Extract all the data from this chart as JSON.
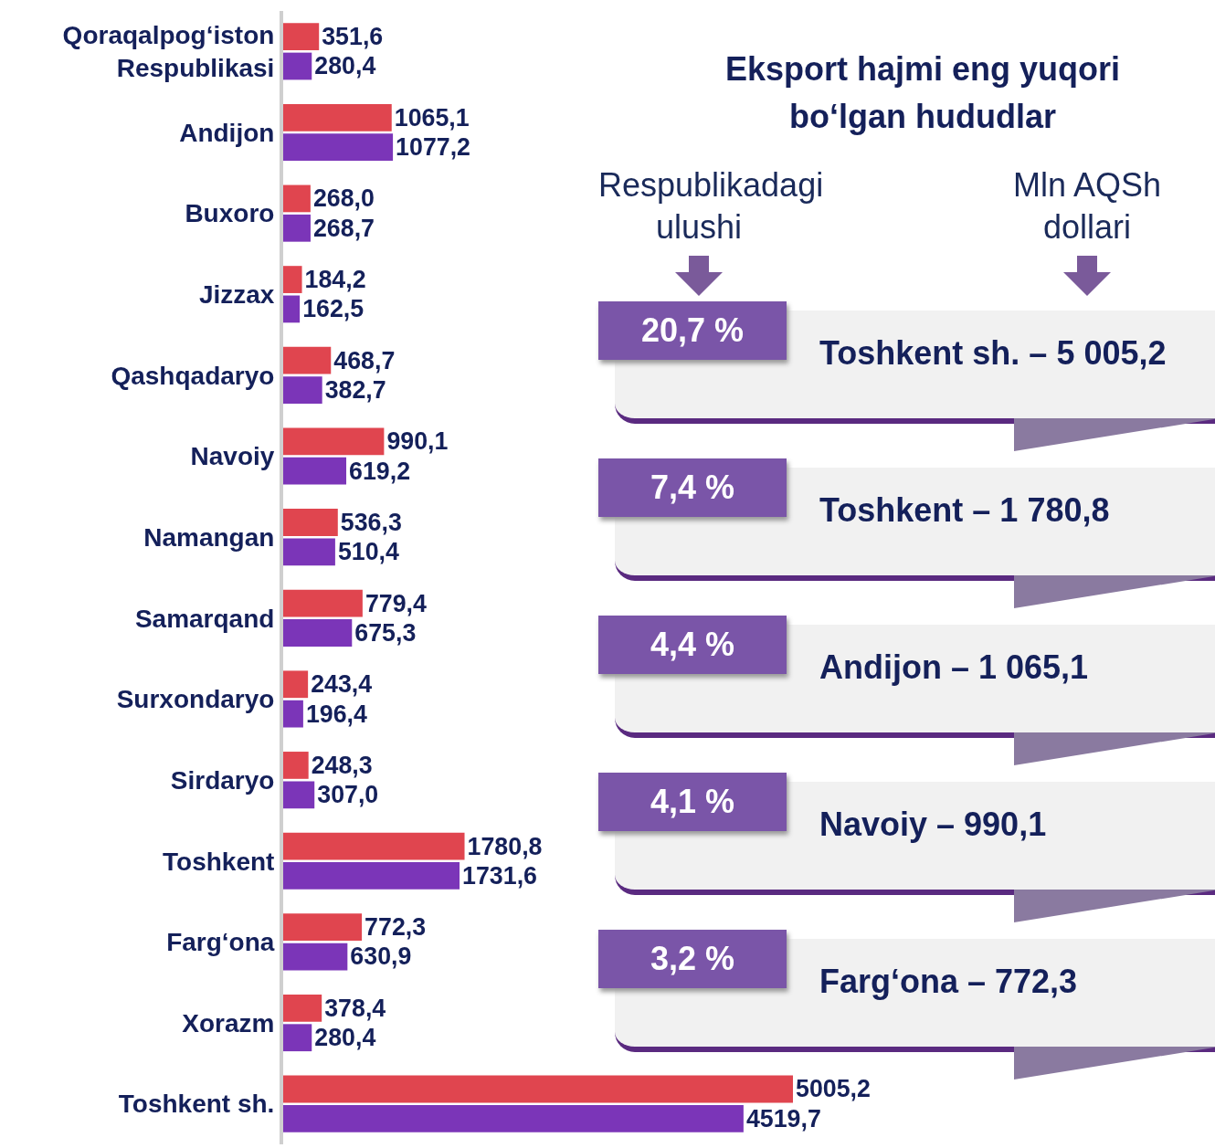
{
  "chart_data": [
    {
      "type": "bar",
      "orientation": "horizontal",
      "grid": false,
      "categories": [
        "Qoraqalpog‘iston Respublikasi",
        "Andijon",
        "Buxoro",
        "Jizzax",
        "Qashqadaryo",
        "Navoiy",
        "Namangan",
        "Samarqand",
        "Surxondaryo",
        "Sirdaryo",
        "Toshkent",
        "Farg‘ona",
        "Xorazm",
        "Toshkent sh."
      ],
      "series": [
        {
          "color": "#e0454f",
          "values": [
            351.6,
            1065.1,
            268.0,
            184.2,
            468.7,
            990.1,
            536.3,
            779.4,
            243.4,
            248.3,
            1780.8,
            772.3,
            378.4,
            5005.2
          ],
          "value_labels": [
            "351,6",
            "1065,1",
            "268,0",
            "184,2",
            "468,7",
            "990,1",
            "536,3",
            "779,4",
            "243,4",
            "248,3",
            "1780,8",
            "772,3",
            "378,4",
            "5005,2"
          ]
        },
        {
          "color": "#7b35b8",
          "values": [
            280.4,
            1077.2,
            268.7,
            162.5,
            382.7,
            619.2,
            510.4,
            675.3,
            196.4,
            307.0,
            1731.6,
            630.9,
            280.4,
            4519.7
          ],
          "value_labels": [
            "280,4",
            "1077,2",
            "268,7",
            "162,5",
            "382,7",
            "619,2",
            "510,4",
            "675,3",
            "196,4",
            "307,0",
            "1731,6",
            "630,9",
            "280,4",
            "4519,7"
          ]
        }
      ]
    },
    {
      "type": "other",
      "title": "Eksport hajmi eng yuqori bo‘lgan hududlar",
      "annotations": [
        "Respublikadagi ulushi",
        "Mln AQSh dollari",
        "20,7 %",
        "Toshkent sh. – 5 005,2",
        "7,4 %",
        "Toshkent – 1 780,8",
        "4,4 %",
        "Andijon – 1 065,1",
        "4,1 %",
        "Navoiy – 990,1",
        "3,2 %",
        "Farg‘ona – 772,3"
      ]
    }
  ]
}
